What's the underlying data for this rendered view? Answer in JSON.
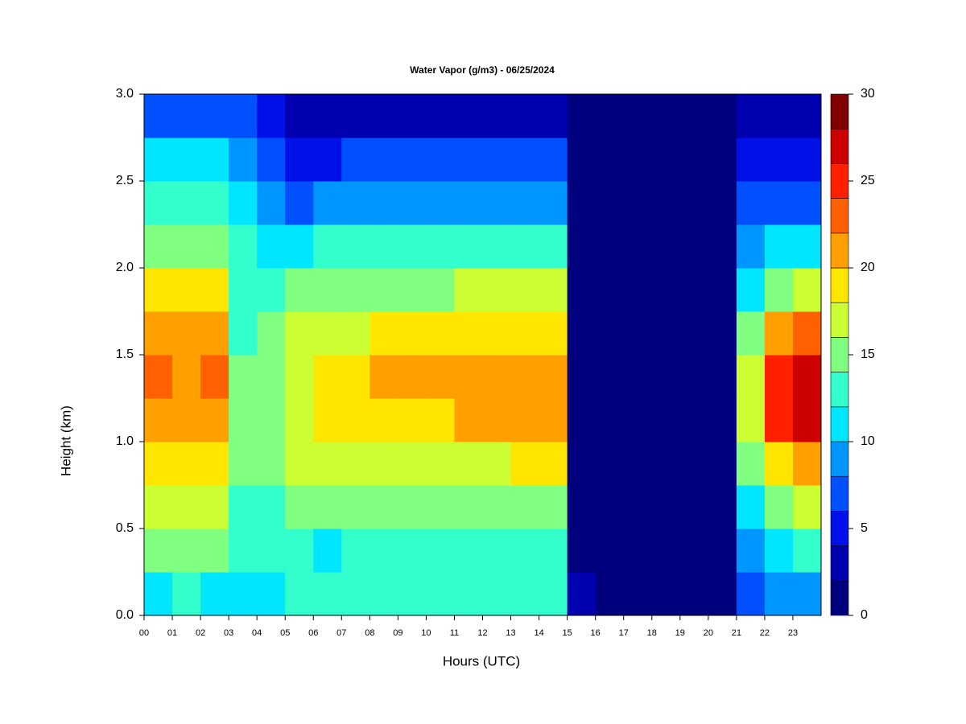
{
  "chart_data": {
    "type": "heatmap",
    "title": "Water Vapor (g/m3) - 06/25/2024",
    "x_label": "Hours (UTC)",
    "y_label": "Height (km)",
    "x": [
      0,
      1,
      2,
      3,
      4,
      5,
      6,
      7,
      8,
      9,
      10,
      11,
      12,
      13,
      14,
      15,
      16,
      17,
      18,
      19,
      20,
      21,
      22,
      23,
      24
    ],
    "y": [
      0,
      0.25,
      0.5,
      0.75,
      1,
      1.25,
      1.5,
      1.75,
      2,
      2.25,
      2.5,
      2.75,
      3
    ],
    "values": [
      [
        11,
        14,
        16,
        19,
        21,
        23,
        21,
        19,
        15,
        12,
        10,
        7
      ],
      [
        12,
        15,
        17,
        19,
        20,
        21,
        20,
        18,
        15,
        12,
        10,
        7
      ],
      [
        11,
        14,
        16,
        18,
        20,
        22,
        20,
        18,
        15,
        12,
        10,
        7
      ],
      [
        11,
        12,
        13,
        14,
        14,
        14,
        13,
        13,
        12,
        11,
        9,
        6
      ],
      [
        11,
        12,
        13,
        15,
        15,
        15,
        14,
        13,
        11,
        8,
        6,
        4
      ],
      [
        13,
        12,
        14,
        16,
        17,
        17,
        16,
        14,
        11,
        7,
        5,
        3
      ],
      [
        13,
        11,
        14,
        16,
        18,
        18,
        17,
        15,
        12,
        8,
        5,
        3
      ],
      [
        13,
        13,
        14,
        17,
        19,
        19,
        17,
        15,
        12,
        9,
        6,
        3
      ],
      [
        13,
        13,
        14,
        17,
        19,
        20,
        18,
        15,
        12,
        9,
        6,
        3
      ],
      [
        13,
        13,
        14,
        17,
        19,
        20,
        18,
        15,
        12,
        9,
        6,
        3
      ],
      [
        13,
        13,
        14,
        17,
        19,
        20,
        18,
        15,
        12,
        9,
        6,
        3
      ],
      [
        13,
        13,
        15,
        17,
        20,
        21,
        19,
        16,
        12,
        9,
        6,
        3
      ],
      [
        13,
        13,
        15,
        17,
        20,
        21,
        19,
        16,
        12,
        9,
        6,
        3
      ],
      [
        13,
        13,
        15,
        18,
        21,
        21,
        19,
        16,
        12,
        9,
        6,
        3
      ],
      [
        12,
        13,
        15,
        18,
        21,
        21,
        19,
        16,
        12,
        9,
        6,
        3
      ],
      [
        2,
        1,
        1,
        1,
        1,
        1,
        1,
        1,
        1,
        1,
        1,
        1
      ],
      [
        1,
        1,
        1,
        1,
        1,
        1,
        1,
        1,
        1,
        1,
        1,
        1
      ],
      [
        1,
        1,
        1,
        1,
        1,
        1,
        1,
        1,
        1,
        1,
        1,
        1
      ],
      [
        1,
        1,
        1,
        1,
        1,
        1,
        1,
        1,
        1,
        1,
        1,
        1
      ],
      [
        1,
        1,
        1,
        1,
        1,
        1,
        1,
        1,
        1,
        1,
        1,
        1
      ],
      [
        1,
        1,
        1,
        1,
        1,
        1,
        1,
        1,
        1,
        1,
        1,
        1
      ],
      [
        7,
        9,
        11,
        14,
        16,
        16,
        14,
        11,
        8,
        6,
        4,
        2
      ],
      [
        9,
        11,
        15,
        19,
        24,
        25,
        20,
        15,
        11,
        7,
        4,
        2
      ],
      [
        9,
        12,
        16,
        20,
        27,
        27,
        22,
        16,
        11,
        7,
        5,
        3
      ]
    ],
    "xlim": [
      0,
      24
    ],
    "xticks": [
      {
        "value": 0,
        "label": "00"
      },
      {
        "value": 1,
        "label": "01"
      },
      {
        "value": 2,
        "label": "02"
      },
      {
        "value": 3,
        "label": "03"
      },
      {
        "value": 4,
        "label": "04"
      },
      {
        "value": 5,
        "label": "05"
      },
      {
        "value": 6,
        "label": "06"
      },
      {
        "value": 7,
        "label": "07"
      },
      {
        "value": 8,
        "label": "08"
      },
      {
        "value": 9,
        "label": "09"
      },
      {
        "value": 10,
        "label": "10"
      },
      {
        "value": 11,
        "label": "11"
      },
      {
        "value": 12,
        "label": "12"
      },
      {
        "value": 13,
        "label": "13"
      },
      {
        "value": 14,
        "label": "14"
      },
      {
        "value": 15,
        "label": "15"
      },
      {
        "value": 16,
        "label": "16"
      },
      {
        "value": 17,
        "label": "17"
      },
      {
        "value": 18,
        "label": "18"
      },
      {
        "value": 19,
        "label": "19"
      },
      {
        "value": 20,
        "label": "20"
      },
      {
        "value": 21,
        "label": "21"
      },
      {
        "value": 22,
        "label": "22"
      },
      {
        "value": 23,
        "label": "23"
      }
    ],
    "ylim": [
      0,
      3
    ],
    "yticks": [
      {
        "value": 0,
        "label": "0.0"
      },
      0.5,
      {
        "value": 1,
        "label": "1.0"
      },
      1.5,
      {
        "value": 2,
        "label": "2.0"
      },
      2.5,
      {
        "value": 3,
        "label": "3.0"
      }
    ],
    "levels": [
      0,
      2,
      4,
      6,
      8,
      10,
      12,
      14,
      16,
      18,
      20,
      22,
      24,
      26,
      28,
      30
    ],
    "colors": [
      "#00007f",
      "#0000b0",
      "#0010e8",
      "#0050ff",
      "#0096ff",
      "#00e6ff",
      "#33ffcc",
      "#80ff80",
      "#ccff33",
      "#ffe600",
      "#ffa000",
      "#ff6000",
      "#ff2000",
      "#cc0000",
      "#800000"
    ],
    "colorbar_lim": [
      0,
      30
    ],
    "colorbar_ticks": [
      0,
      5,
      10,
      15,
      20,
      25,
      30
    ]
  }
}
